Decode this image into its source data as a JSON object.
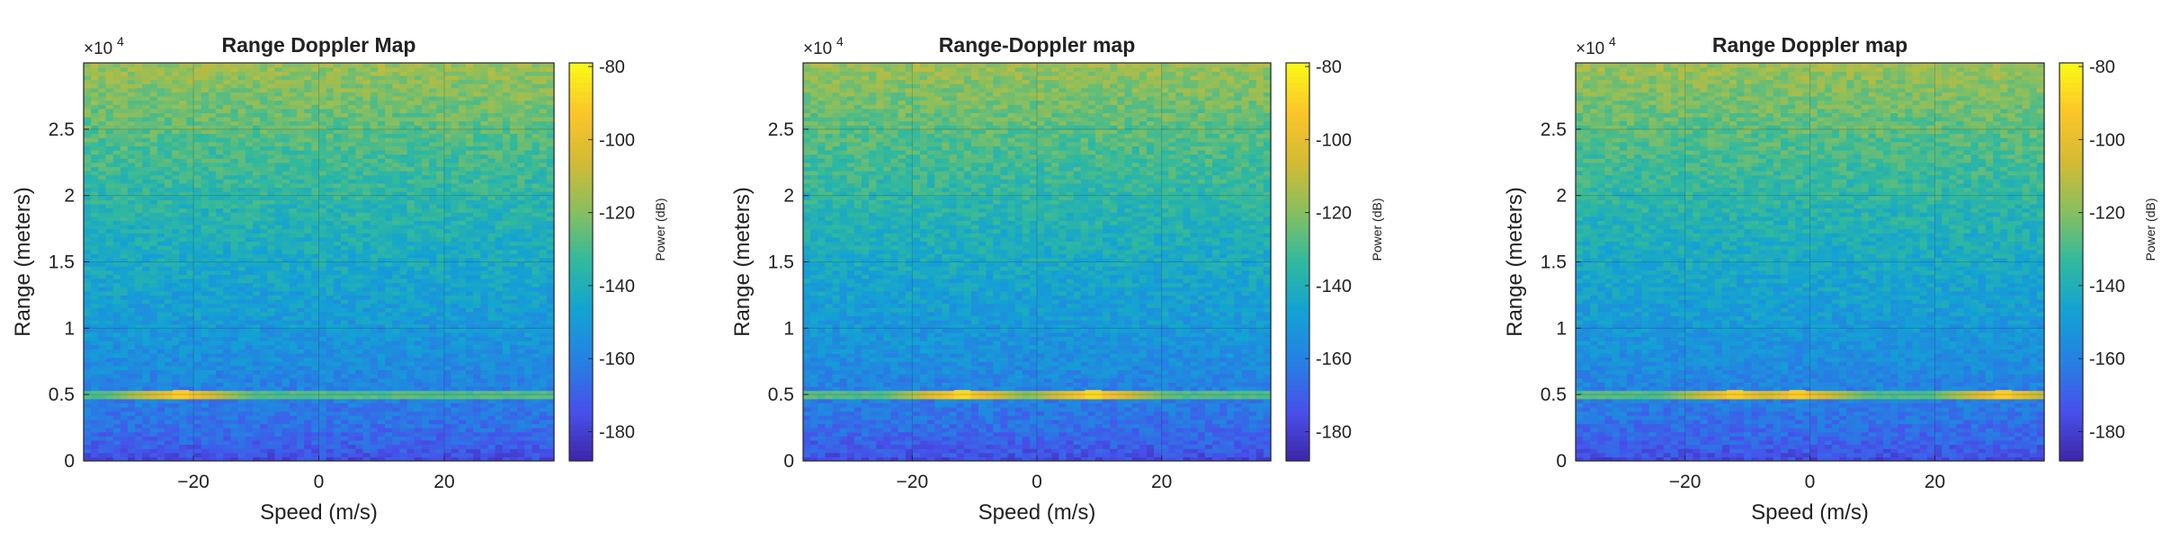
{
  "chart_data": [
    {
      "type": "heatmap",
      "title": "Range Doppler Map",
      "xlabel": "Speed (m/s)",
      "ylabel": "Range (meters)",
      "y_exponent": "×10",
      "y_exponent_power": "4",
      "colorbar_label": "Power (dB)",
      "xlim": [
        -37.5,
        37.5
      ],
      "ylim": [
        0,
        30000
      ],
      "x_ticks": [
        -20,
        0,
        20
      ],
      "x_tick_labels": [
        "−20",
        "0",
        "20"
      ],
      "y_ticks": [
        0,
        5000,
        10000,
        15000,
        20000,
        25000
      ],
      "y_tick_labels": [
        "0",
        "0.5",
        "1",
        "1.5",
        "2",
        "2.5"
      ],
      "clim": [
        -188,
        -79
      ],
      "colorbar_ticks": [
        -80,
        -100,
        -120,
        -140,
        -160,
        -180
      ],
      "colorbar_tick_labels": [
        "-80",
        "-100",
        "-120",
        "-140",
        "-160",
        "-180"
      ],
      "grid": true,
      "colormap": "parula",
      "target_range": 5000,
      "targets": [
        {
          "speed": -22,
          "power": -91
        }
      ],
      "seed": 11
    },
    {
      "type": "heatmap",
      "title": "Range-Doppler map",
      "xlabel": "Speed (m/s)",
      "ylabel": "Range (meters)",
      "y_exponent": "×10",
      "y_exponent_power": "4",
      "colorbar_label": "Power (dB)",
      "xlim": [
        -37.5,
        37.5
      ],
      "ylim": [
        0,
        30000
      ],
      "x_ticks": [
        -20,
        0,
        20
      ],
      "x_tick_labels": [
        "−20",
        "0",
        "20"
      ],
      "y_ticks": [
        0,
        5000,
        10000,
        15000,
        20000,
        25000
      ],
      "y_tick_labels": [
        "0",
        "0.5",
        "1",
        "1.5",
        "2",
        "2.5"
      ],
      "clim": [
        -188,
        -79
      ],
      "colorbar_ticks": [
        -80,
        -100,
        -120,
        -140,
        -160,
        -180
      ],
      "colorbar_tick_labels": [
        "-80",
        "-100",
        "-120",
        "-140",
        "-160",
        "-180"
      ],
      "grid": true,
      "colormap": "parula",
      "target_range": 5000,
      "targets": [
        {
          "speed": -12,
          "power": -88
        },
        {
          "speed": 9,
          "power": -88
        }
      ],
      "seed": 23
    },
    {
      "type": "heatmap",
      "title": "Range Doppler map",
      "xlabel": "Speed (m/s)",
      "ylabel": "Range (meters)",
      "y_exponent": "×10",
      "y_exponent_power": "4",
      "colorbar_label": "Power (dB)",
      "xlim": [
        -37.5,
        37.5
      ],
      "ylim": [
        0,
        30000
      ],
      "x_ticks": [
        -20,
        0,
        20
      ],
      "x_tick_labels": [
        "−20",
        "0",
        "20"
      ],
      "y_ticks": [
        0,
        5000,
        10000,
        15000,
        20000,
        25000
      ],
      "y_tick_labels": [
        "0",
        "0.5",
        "1",
        "1.5",
        "2",
        "2.5"
      ],
      "clim": [
        -188,
        -79
      ],
      "colorbar_ticks": [
        -80,
        -100,
        -120,
        -140,
        -160,
        -180
      ],
      "colorbar_tick_labels": [
        "-80",
        "-100",
        "-120",
        "-140",
        "-160",
        "-180"
      ],
      "grid": true,
      "colormap": "parula",
      "target_range": 5000,
      "targets": [
        {
          "speed": -12,
          "power": -91
        },
        {
          "speed": -2,
          "power": -91
        },
        {
          "speed": 31,
          "power": -91
        }
      ],
      "seed": 37
    }
  ]
}
